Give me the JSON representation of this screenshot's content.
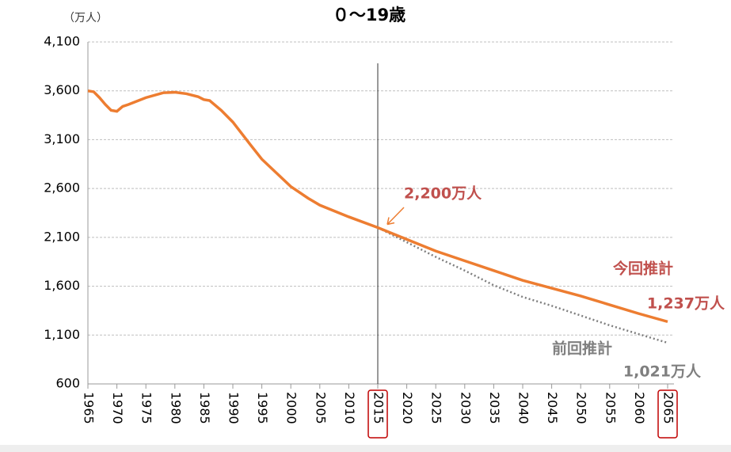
{
  "chart_data": {
    "type": "line",
    "title": "０～19歳",
    "y_unit_label": "（万人）",
    "xlim": [
      1965,
      2065
    ],
    "xticks": [
      1965,
      1970,
      1975,
      1980,
      1985,
      1990,
      1995,
      2000,
      2005,
      2010,
      2015,
      2020,
      2025,
      2030,
      2035,
      2040,
      2045,
      2050,
      2055,
      2060,
      2065
    ],
    "ylim": [
      600,
      4100
    ],
    "yticks": [
      600,
      {
        "value": 1100,
        "label": "1,100"
      },
      {
        "value": 1600,
        "label": "1,600"
      },
      {
        "value": 2100,
        "label": "2,100"
      },
      {
        "value": 2600,
        "label": "2,600"
      },
      {
        "value": 3100,
        "label": "3,100"
      },
      {
        "value": 3600,
        "label": "3,600"
      },
      {
        "value": 4100,
        "label": "4,100"
      }
    ],
    "grid": true,
    "series": [
      {
        "name": "今回推計",
        "color": "#ed7d31",
        "style": "solid",
        "x": [
          1965,
          1966,
          1967,
          1968,
          1969,
          1970,
          1971,
          1972,
          1975,
          1978,
          1980,
          1982,
          1984,
          1985,
          1986,
          1988,
          1990,
          1993,
          1995,
          2000,
          2003,
          2005,
          2010,
          2015,
          2020,
          2025,
          2030,
          2035,
          2040,
          2045,
          2050,
          2055,
          2060,
          2065
        ],
        "values": [
          3600,
          3590,
          3530,
          3460,
          3400,
          3390,
          3440,
          3460,
          3530,
          3580,
          3585,
          3570,
          3540,
          3510,
          3500,
          3400,
          3280,
          3050,
          2900,
          2620,
          2500,
          2430,
          2310,
          2200,
          2080,
          1960,
          1860,
          1760,
          1660,
          1580,
          1500,
          1410,
          1320,
          1237
        ]
      },
      {
        "name": "前回推計",
        "color": "#7f7f7f",
        "style": "dotted",
        "x": [
          2010,
          2015,
          2020,
          2025,
          2030,
          2035,
          2040,
          2045,
          2050,
          2055,
          2060,
          2065
        ],
        "values": [
          2310,
          2200,
          2050,
          1900,
          1760,
          1610,
          1490,
          1400,
          1300,
          1200,
          1110,
          1021
        ]
      }
    ],
    "annotations": [
      {
        "text": "2,200万人"
      },
      {
        "text": "1,237万人"
      },
      {
        "text": "1,021万人"
      }
    ],
    "highlight_x": [
      2015,
      2065
    ]
  }
}
